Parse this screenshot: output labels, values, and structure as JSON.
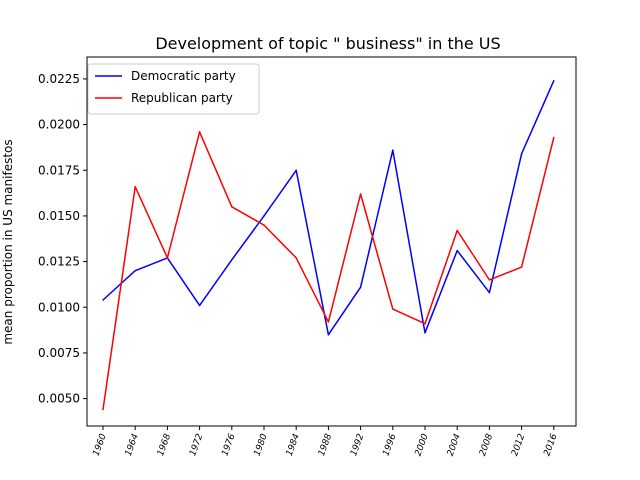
{
  "chart_data": {
    "type": "line",
    "title": "Development of topic \" business\" in the US",
    "xlabel": "",
    "ylabel": "mean proportion in US manifestos",
    "categories": [
      "1960",
      "1964",
      "1968",
      "1972",
      "1976",
      "1980",
      "1984",
      "1988",
      "1992",
      "1996",
      "2000",
      "2004",
      "2008",
      "2012",
      "2016"
    ],
    "ylim": [
      0.0035,
      0.0237
    ],
    "yticks": [
      "0.0050",
      "0.0075",
      "0.0100",
      "0.0125",
      "0.0150",
      "0.0175",
      "0.0200",
      "0.0225"
    ],
    "grid": false,
    "legend_position": "top-left",
    "series": [
      {
        "name": "Democratic party",
        "color": "#0000ff",
        "values": [
          0.0104,
          0.012,
          0.0127,
          0.0101,
          0.0126,
          0.015,
          0.0175,
          0.0085,
          0.0111,
          0.0186,
          0.0086,
          0.0131,
          0.0108,
          0.0184,
          0.0224
        ]
      },
      {
        "name": "Republican party",
        "color": "#ff0000",
        "values": [
          0.0044,
          0.0166,
          0.0127,
          0.0196,
          0.0155,
          0.0145,
          0.0127,
          0.0092,
          0.0162,
          0.0099,
          0.0091,
          0.0142,
          0.0115,
          0.0122,
          0.0193
        ]
      }
    ]
  }
}
